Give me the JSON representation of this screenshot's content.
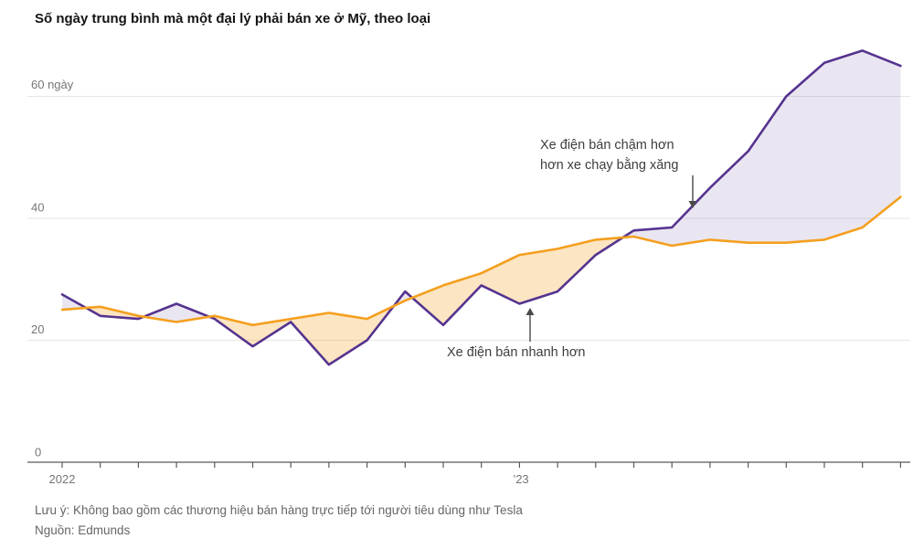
{
  "title": "Số ngày trung bình mà một đại lý phải bán xe ở Mỹ, theo loại",
  "annotations": {
    "slower_line1": "Xe điện bán chậm hơn",
    "slower_line2": "hơn xe chạy bằng xăng",
    "faster": "Xe điện bán nhanh hơn"
  },
  "footer": {
    "note": "Lưu ý: Không bao gồm các thương hiệu bán hàng trực tiếp tới người tiêu dùng như Tesla",
    "source": "Nguồn: Edmunds"
  },
  "colors": {
    "background": "#ffffff",
    "gridline": "#e6e6e6",
    "axis": "#595959",
    "title_text": "#141414",
    "axis_text": "#757575",
    "annotation_text": "#3d3d3d",
    "footer_text": "#666666",
    "arrow": "#4a4a4a",
    "ev_line": "#55338f",
    "gas_line": "#f49f1e"
  },
  "chart_data": {
    "type": "line",
    "title": "Số ngày trung bình mà một đại lý phải bán xe ở Mỹ, theo loại",
    "x": [
      "2022-01",
      "2022-02",
      "2022-03",
      "2022-04",
      "2022-05",
      "2022-06",
      "2022-07",
      "2022-08",
      "2022-09",
      "2022-10",
      "2022-11",
      "2022-12",
      "2023-01",
      "2023-02",
      "2023-03",
      "2023-04",
      "2023-05",
      "2023-06",
      "2023-07",
      "2023-08",
      "2023-09",
      "2023-10",
      "2023-11"
    ],
    "x_axis": {
      "tick_interval": "month",
      "labels": [
        "2022",
        "’23"
      ],
      "label_month_index": [
        0,
        12
      ]
    },
    "y_axis": {
      "ticks": [
        0,
        20,
        40,
        60
      ],
      "labels": [
        "60 ngày",
        "40",
        "20",
        "0"
      ],
      "unit": "ngày",
      "ylim": [
        0,
        70
      ],
      "gridlines": true
    },
    "series": [
      {
        "key": "ev",
        "name": "Xe điện",
        "color": "#55338f",
        "values": [
          27.5,
          24,
          23.5,
          26,
          23.5,
          19,
          23,
          16,
          20,
          28,
          22.5,
          29,
          26,
          28,
          34,
          38,
          38.5,
          45,
          51,
          60,
          65.5,
          67.5,
          65
        ]
      },
      {
        "key": "gas",
        "name": "Xe chạy bằng xăng",
        "color": "#f49f1e",
        "values": [
          25,
          25.5,
          24,
          23,
          24,
          22.5,
          23.5,
          24.5,
          23.5,
          26.5,
          29,
          31,
          34,
          35,
          36.5,
          37,
          35.5,
          36.5,
          36,
          36,
          36.5,
          38.5,
          43.5
        ]
      }
    ],
    "fill_between": {
      "ev_above_gas_color": "#55338f",
      "ev_above_gas_opacity": 0.12,
      "ev_below_gas_color": "#f49f1e",
      "ev_below_gas_opacity": 0.27
    },
    "legend": "none"
  }
}
